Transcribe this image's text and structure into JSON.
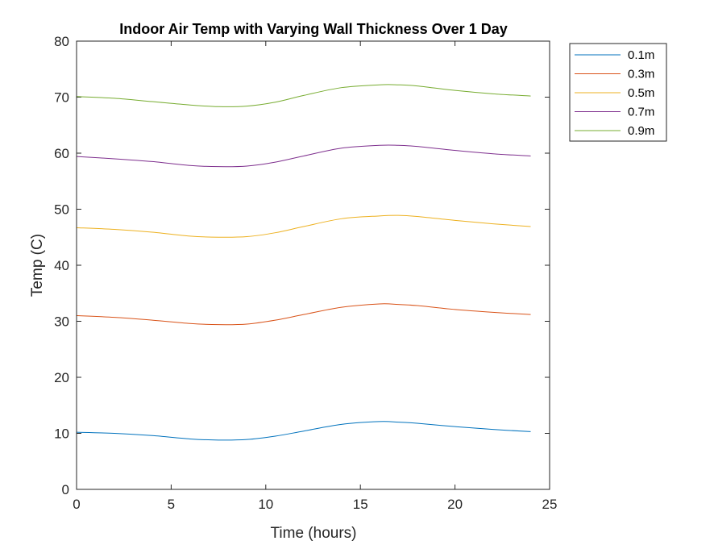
{
  "chart_data": {
    "type": "line",
    "title": "Indoor Air Temp with Varying Wall Thickness Over 1 Day",
    "xlabel": "Time (hours)",
    "ylabel": "Temp (C)",
    "xlim": [
      0,
      25
    ],
    "ylim": [
      0,
      80
    ],
    "xticks": [
      "0",
      "5",
      "10",
      "15",
      "20",
      "25"
    ],
    "yticks": [
      "0",
      "10",
      "20",
      "30",
      "40",
      "50",
      "60",
      "70",
      "80"
    ],
    "grid": false,
    "legend_position": "outside-top-right",
    "x": [
      0,
      2,
      4,
      6,
      7.5,
      9,
      10.5,
      12,
      14,
      16,
      17,
      18,
      20,
      22,
      24
    ],
    "series": [
      {
        "name": "0.1m",
        "color": "#0072BD",
        "values": [
          10.2,
          10.0,
          9.6,
          9.0,
          8.8,
          8.9,
          9.5,
          10.4,
          11.6,
          12.1,
          12.0,
          11.8,
          11.2,
          10.7,
          10.3
        ]
      },
      {
        "name": "0.3m",
        "color": "#D95319",
        "values": [
          31.0,
          30.7,
          30.2,
          29.6,
          29.4,
          29.5,
          30.2,
          31.2,
          32.5,
          33.1,
          33.0,
          32.8,
          32.1,
          31.6,
          31.2
        ]
      },
      {
        "name": "0.5m",
        "color": "#EDB120",
        "values": [
          46.7,
          46.4,
          45.9,
          45.2,
          45.0,
          45.1,
          45.8,
          46.9,
          48.3,
          48.8,
          48.9,
          48.7,
          48.0,
          47.4,
          46.9
        ]
      },
      {
        "name": "0.7m",
        "color": "#7E2F8E",
        "values": [
          59.4,
          59.0,
          58.5,
          57.8,
          57.6,
          57.7,
          58.4,
          59.5,
          60.9,
          61.4,
          61.4,
          61.2,
          60.5,
          59.9,
          59.5
        ]
      },
      {
        "name": "0.9m",
        "color": "#77AC30",
        "values": [
          70.1,
          69.8,
          69.2,
          68.6,
          68.3,
          68.4,
          69.1,
          70.3,
          71.7,
          72.2,
          72.2,
          72.0,
          71.2,
          70.6,
          70.2
        ]
      }
    ]
  }
}
